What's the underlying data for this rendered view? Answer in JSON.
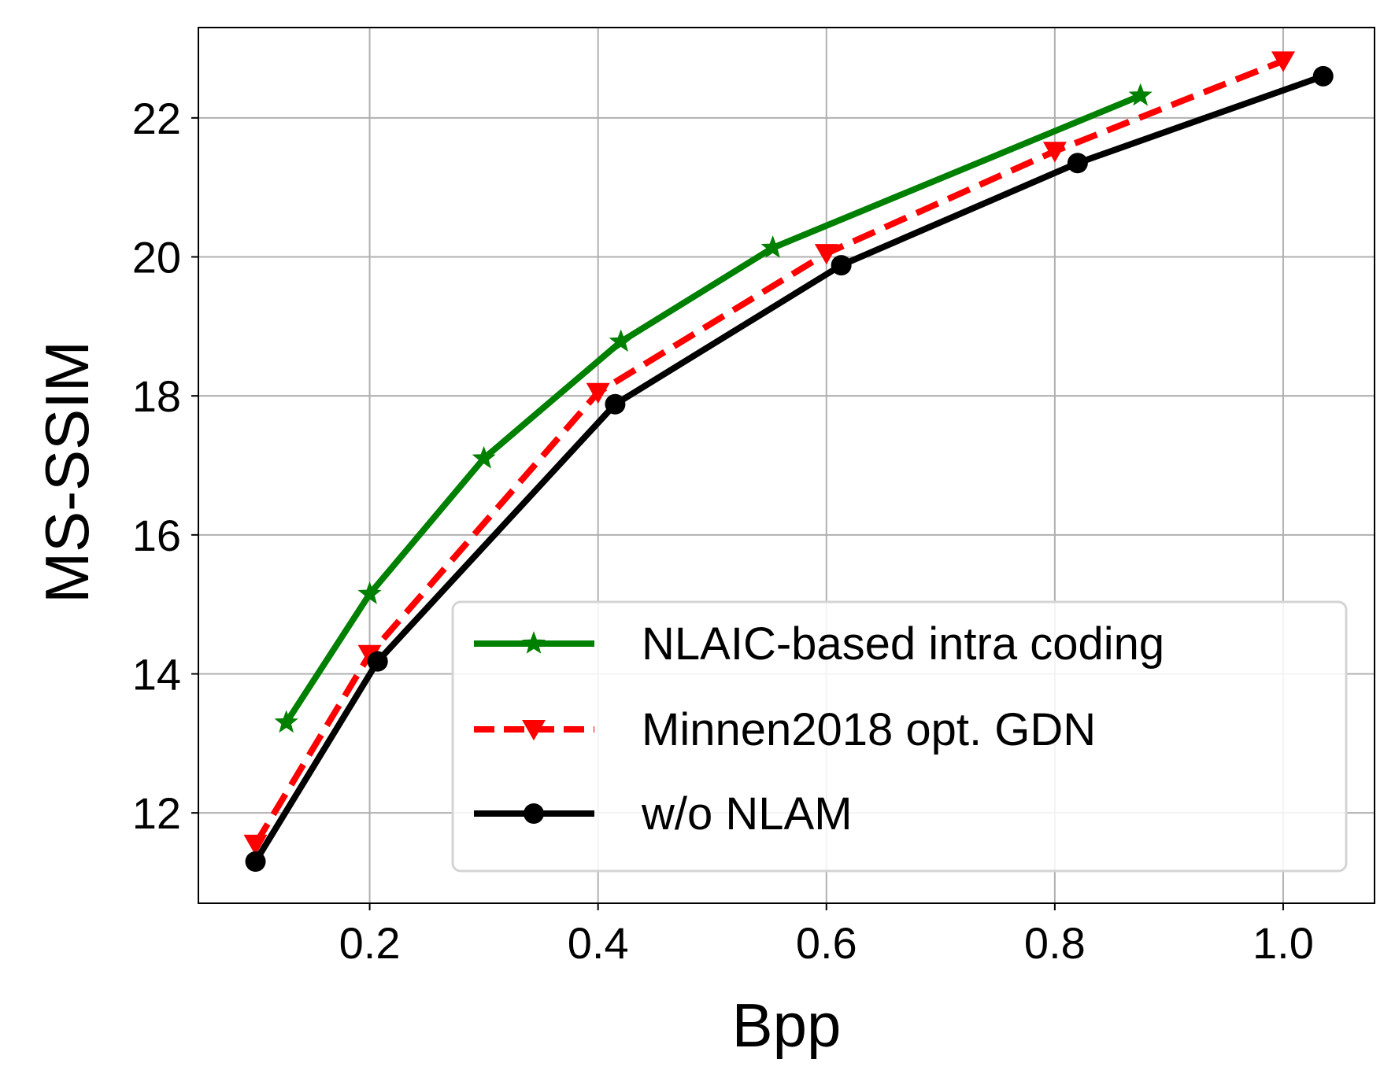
{
  "chart_data": {
    "type": "line",
    "xlabel": "Bpp",
    "ylabel": "MS-SSIM",
    "xlim": [
      0.05,
      1.08
    ],
    "ylim": [
      10.7,
      23.3
    ],
    "grid": true,
    "legend_position": "lower-right",
    "x_ticks": [
      {
        "value": 0.2,
        "label": "0.2"
      },
      {
        "value": 0.4,
        "label": "0.4"
      },
      {
        "value": 0.6,
        "label": "0.6"
      },
      {
        "value": 0.8,
        "label": "0.8"
      },
      {
        "value": 1.0,
        "label": "1.0"
      }
    ],
    "y_ticks": [
      {
        "value": 12,
        "label": "12"
      },
      {
        "value": 14,
        "label": "14"
      },
      {
        "value": 16,
        "label": "16"
      },
      {
        "value": 18,
        "label": "18"
      },
      {
        "value": 20,
        "label": "20"
      },
      {
        "value": 22,
        "label": "22"
      }
    ],
    "series": [
      {
        "name": "NLAIC-based intra coding",
        "color": "#008000",
        "line_style": "solid",
        "marker": "star",
        "x": [
          0.127,
          0.2,
          0.3,
          0.42,
          0.553,
          0.875
        ],
        "y": [
          13.3,
          15.15,
          17.1,
          18.78,
          20.13,
          22.32
        ]
      },
      {
        "name": "Minnen2018 opt. GDN",
        "color": "#ff0000",
        "line_style": "dashed",
        "marker": "triangle-down",
        "x": [
          0.1,
          0.2,
          0.4,
          0.6,
          0.8,
          1.0
        ],
        "y": [
          11.55,
          14.28,
          18.05,
          20.05,
          21.52,
          22.82
        ]
      },
      {
        "name": "w/o NLAM",
        "color": "#000000",
        "line_style": "solid",
        "marker": "circle",
        "x": [
          0.1,
          0.207,
          0.415,
          0.613,
          0.82,
          1.035
        ],
        "y": [
          11.3,
          14.18,
          17.88,
          19.88,
          21.35,
          22.6
        ]
      }
    ]
  }
}
